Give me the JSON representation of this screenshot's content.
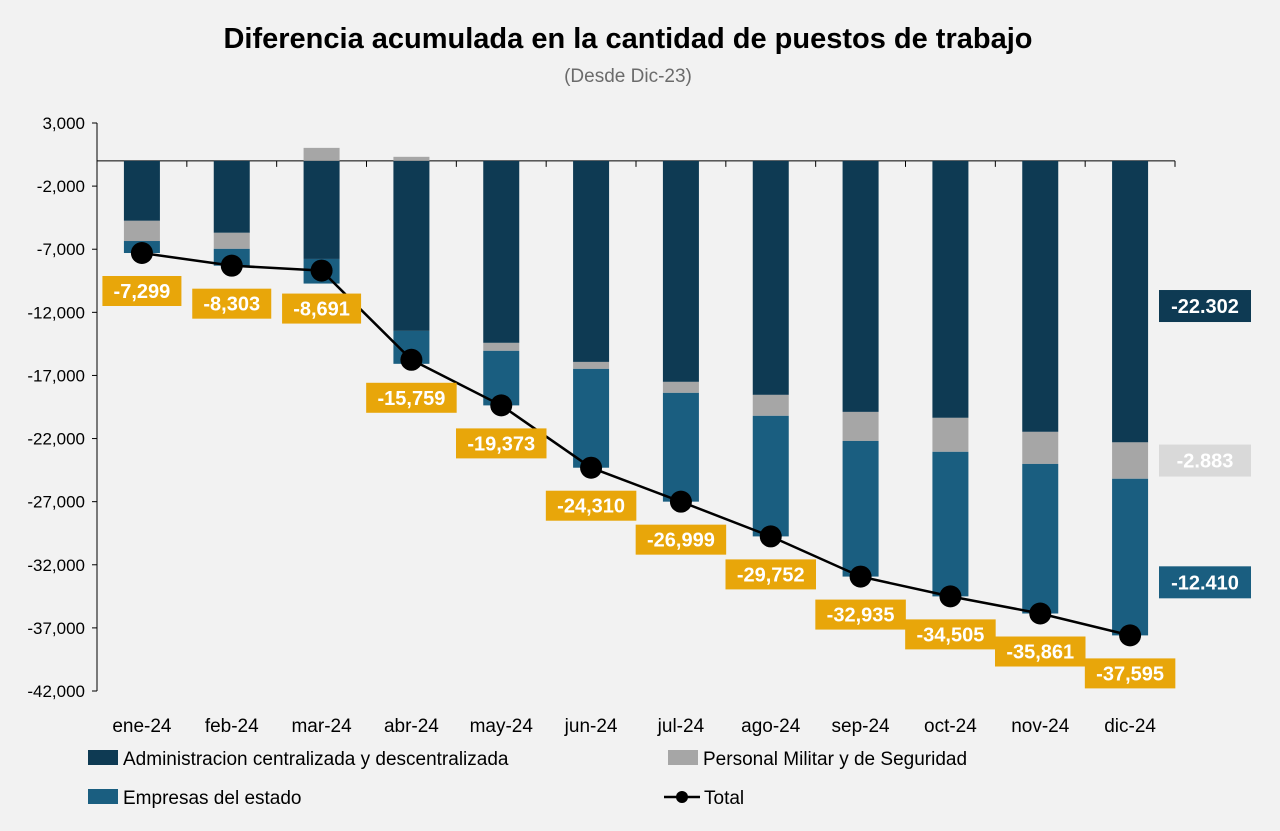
{
  "chart_data": {
    "type": "bar",
    "stacked": true,
    "title": "Diferencia acumulada en la cantidad de puestos de trabajo",
    "subtitle": "(Desde Dic-23)",
    "categories": [
      "ene-24",
      "feb-24",
      "mar-24",
      "abr-24",
      "may-24",
      "jun-24",
      "jul-24",
      "ago-24",
      "sep-24",
      "oct-24",
      "nov-24",
      "dic-24"
    ],
    "ylim": [
      -42000,
      3000
    ],
    "yticks": [
      3000,
      -2000,
      -7000,
      -12000,
      -17000,
      -22000,
      -27000,
      -32000,
      -37000,
      -42000
    ],
    "ytick_labels": [
      "3,000",
      "-2,000",
      "-7,000",
      "-12,000",
      "-17,000",
      "-22,000",
      "-27,000",
      "-32,000",
      "-37,000",
      "-42,000"
    ],
    "grid": false,
    "legend_position": "bottom",
    "series": [
      {
        "name": "Administracion centralizada y descentralizada",
        "color": "#0e3a53",
        "values": [
          -4750,
          -5700,
          -7770,
          -13470,
          -14420,
          -15930,
          -17510,
          -18540,
          -19890,
          -20360,
          -21470,
          -22302
        ]
      },
      {
        "name": "Personal Militar y de Seguridad",
        "color": "#a6a6a6",
        "values": [
          -1600,
          -1270,
          1030,
          320,
          -630,
          -550,
          -870,
          -1660,
          -2300,
          -2690,
          -2540,
          -2883
        ]
      },
      {
        "name": "Empresas del estado",
        "color": "#1a5e80",
        "values": [
          -950,
          -1333,
          -1951,
          -2609,
          -4323,
          -7830,
          -8619,
          -9552,
          -10745,
          -11455,
          -11851,
          -12410
        ]
      }
    ],
    "line": {
      "name": "Total",
      "color": "#000000",
      "label_color": "#e8a60a",
      "values": [
        -7299,
        -8303,
        -8691,
        -15759,
        -19373,
        -24310,
        -26999,
        -29752,
        -32935,
        -34505,
        -35861,
        -37595
      ],
      "labels": [
        "-7,299",
        "-8,303",
        "-8,691",
        "-15,759",
        "-19,373",
        "-24,310",
        "-26,999",
        "-29,752",
        "-32,935",
        "-34,505",
        "-35,861",
        "-37,595"
      ]
    },
    "end_labels": [
      "-22.302",
      "-2.883",
      "-12.410"
    ]
  }
}
